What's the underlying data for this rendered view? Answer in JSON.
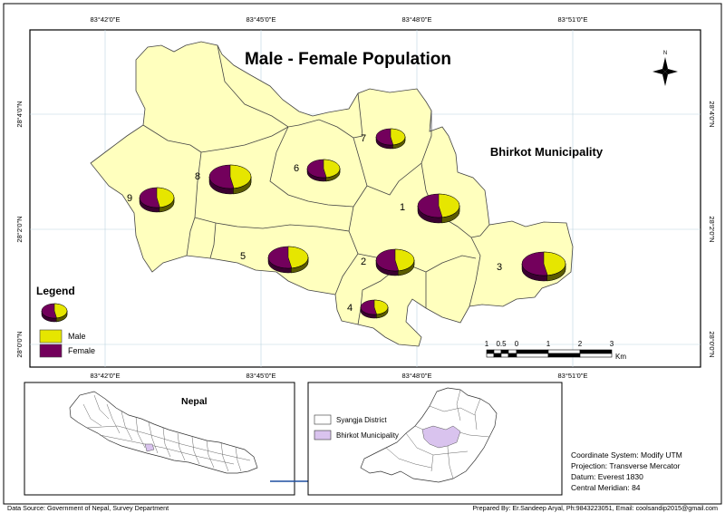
{
  "map": {
    "title": "Male - Female Population",
    "municipality_label": "Bhirkot Municipality",
    "top_coords": [
      "83°42'0\"E",
      "83°45'0\"E",
      "83°48'0\"E",
      "83°51'0\"E"
    ],
    "bottom_coords": [
      "83°42'0\"E",
      "83°45'0\"E",
      "83°48'0\"E",
      "83°51'0\"E"
    ],
    "left_coords": [
      "28°4'0\"N",
      "28°2'0\"N",
      "28°0'0\"N"
    ],
    "right_coords": [
      "28°4'0\"N",
      "28°2'0\"N",
      "28°0'0\"N"
    ],
    "north_label": "N",
    "wards": [
      "1",
      "2",
      "3",
      "4",
      "5",
      "6",
      "7",
      "8",
      "9"
    ]
  },
  "legend": {
    "title": "Legend",
    "items": [
      {
        "label": "Male",
        "color": "#e6e600"
      },
      {
        "label": "Female",
        "color": "#73005c"
      }
    ]
  },
  "scale": {
    "ticks": [
      "1",
      "0.5",
      "0",
      "1",
      "2",
      "3"
    ],
    "unit": "Km"
  },
  "inset_nepal": {
    "title": "Nepal"
  },
  "inset_syangja": {
    "legend": [
      {
        "label": "Syangja District",
        "color": "#ffffff"
      },
      {
        "label": "Bhirkot Municipality",
        "color": "#d9c3ee"
      }
    ]
  },
  "info": {
    "lines": [
      "Coordinate System: Modify UTM",
      "Projection: Transverse Mercator",
      "Datum: Everest 1830",
      "Central Meridian: 84"
    ]
  },
  "footer": {
    "source": "Data Source: Government of Nepal, Survey Department",
    "prepared": "Prepared By: Er.Sandeep Aryal, Ph:9843223051, Email: coolsandip2015@gmail.com"
  },
  "colors": {
    "ward_fill": "#ffffbe",
    "male": "#e6e600",
    "female": "#73005c"
  }
}
